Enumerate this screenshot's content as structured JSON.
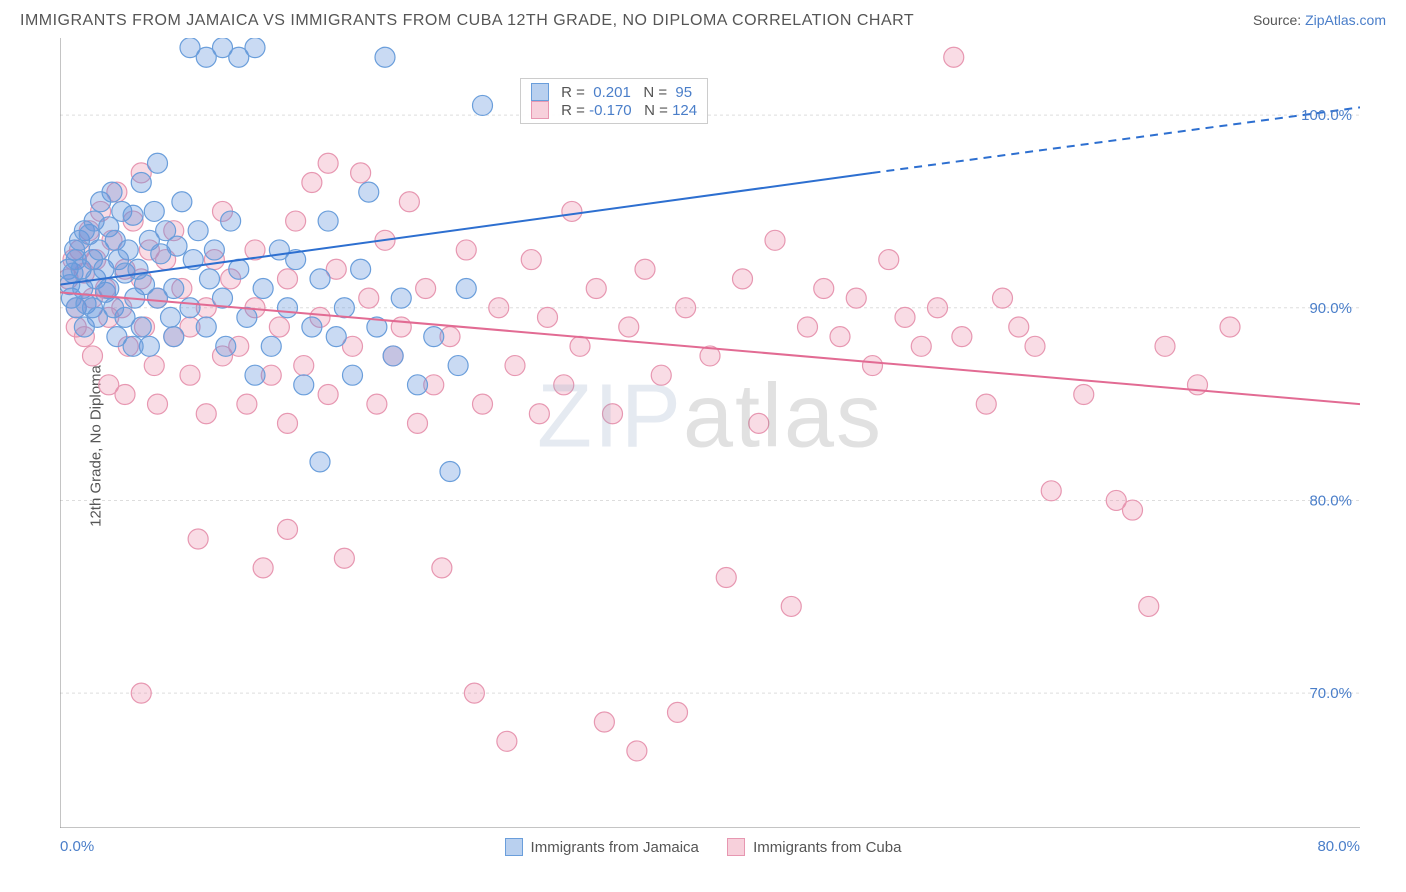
{
  "chart": {
    "type": "scatter",
    "title": "IMMIGRANTS FROM JAMAICA VS IMMIGRANTS FROM CUBA 12TH GRADE, NO DIPLOMA CORRELATION CHART",
    "source_label": "Source:",
    "source_link": "ZipAtlas.com",
    "ylabel": "12th Grade, No Diploma",
    "watermark": "ZIPatlas",
    "background_color": "#ffffff",
    "grid_color": "#dddddd",
    "axis_color": "#888888",
    "text_color": "#555555",
    "value_color": "#4a7ec9",
    "title_fontsize": 16,
    "label_fontsize": 15,
    "xlim": [
      0,
      80
    ],
    "ylim": [
      63,
      104
    ],
    "x_start_label": "0.0%",
    "x_end_label": "80.0%",
    "xtick_positions": [
      0,
      10,
      20,
      30,
      40,
      50,
      60,
      70,
      80
    ],
    "yticks": [
      {
        "value": 100,
        "label": "100.0%"
      },
      {
        "value": 90,
        "label": "90.0%"
      },
      {
        "value": 80,
        "label": "80.0%"
      },
      {
        "value": 70,
        "label": "70.0%"
      }
    ],
    "series": [
      {
        "name": "Immigrants from Jamaica",
        "color_fill": "rgba(100,150,220,0.35)",
        "color_stroke": "#6a9edb",
        "swatch_fill": "#b9d0ef",
        "swatch_border": "#6a9edb",
        "R": "0.201",
        "N": "95",
        "marker_radius": 10,
        "trend": {
          "color": "#2d6fd0",
          "width": 2,
          "solid": {
            "x1": 0,
            "y1": 91.2,
            "x2": 50,
            "y2": 97.0
          },
          "dashed": {
            "x1": 50,
            "y1": 97.0,
            "x2": 80,
            "y2": 100.4
          }
        },
        "points": [
          [
            0.5,
            92.0
          ],
          [
            0.6,
            91.2
          ],
          [
            0.8,
            91.8
          ],
          [
            0.9,
            93.0
          ],
          [
            0.7,
            90.5
          ],
          [
            1.0,
            92.5
          ],
          [
            1.2,
            93.5
          ],
          [
            1.0,
            90.0
          ],
          [
            1.3,
            92.0
          ],
          [
            1.5,
            94.0
          ],
          [
            1.4,
            91.0
          ],
          [
            1.6,
            90.2
          ],
          [
            1.8,
            93.8
          ],
          [
            1.5,
            89.0
          ],
          [
            2.0,
            92.5
          ],
          [
            2.1,
            94.5
          ],
          [
            2.2,
            91.5
          ],
          [
            2.0,
            90.0
          ],
          [
            2.4,
            93.0
          ],
          [
            2.5,
            95.5
          ],
          [
            2.3,
            89.5
          ],
          [
            2.7,
            92.0
          ],
          [
            2.8,
            90.8
          ],
          [
            3.0,
            94.2
          ],
          [
            3.0,
            91.0
          ],
          [
            3.2,
            96.0
          ],
          [
            3.4,
            93.5
          ],
          [
            3.3,
            90.0
          ],
          [
            3.5,
            88.5
          ],
          [
            3.6,
            92.5
          ],
          [
            3.8,
            95.0
          ],
          [
            4.0,
            91.8
          ],
          [
            4.0,
            89.5
          ],
          [
            4.2,
            93.0
          ],
          [
            4.5,
            94.8
          ],
          [
            4.6,
            90.5
          ],
          [
            4.8,
            92.0
          ],
          [
            5.0,
            96.5
          ],
          [
            5.0,
            89.0
          ],
          [
            5.2,
            91.2
          ],
          [
            5.5,
            93.5
          ],
          [
            5.8,
            95.0
          ],
          [
            5.5,
            88.0
          ],
          [
            6.0,
            90.5
          ],
          [
            6.2,
            92.8
          ],
          [
            6.5,
            94.0
          ],
          [
            6.0,
            97.5
          ],
          [
            6.8,
            89.5
          ],
          [
            7.0,
            91.0
          ],
          [
            7.2,
            93.2
          ],
          [
            7.5,
            95.5
          ],
          [
            7.0,
            88.5
          ],
          [
            8.0,
            90.0
          ],
          [
            8.2,
            92.5
          ],
          [
            8.5,
            94.0
          ],
          [
            8.0,
            103.5
          ],
          [
            9.0,
            89.0
          ],
          [
            9.2,
            91.5
          ],
          [
            9.5,
            93.0
          ],
          [
            9.0,
            103.0
          ],
          [
            10.0,
            90.5
          ],
          [
            10.2,
            88.0
          ],
          [
            10.5,
            94.5
          ],
          [
            10.0,
            103.5
          ],
          [
            11.0,
            92.0
          ],
          [
            11.5,
            89.5
          ],
          [
            11.0,
            103.0
          ],
          [
            12.0,
            86.5
          ],
          [
            12.5,
            91.0
          ],
          [
            12.0,
            103.5
          ],
          [
            13.0,
            88.0
          ],
          [
            13.5,
            93.0
          ],
          [
            14.0,
            90.0
          ],
          [
            14.5,
            92.5
          ],
          [
            15.0,
            86.0
          ],
          [
            15.5,
            89.0
          ],
          [
            16.0,
            91.5
          ],
          [
            16.5,
            94.5
          ],
          [
            17.0,
            88.5
          ],
          [
            17.5,
            90.0
          ],
          [
            18.0,
            86.5
          ],
          [
            18.5,
            92.0
          ],
          [
            19.0,
            96.0
          ],
          [
            19.5,
            89.0
          ],
          [
            20.0,
            103.0
          ],
          [
            20.5,
            87.5
          ],
          [
            21.0,
            90.5
          ],
          [
            22.0,
            86.0
          ],
          [
            23.0,
            88.5
          ],
          [
            24.0,
            81.5
          ],
          [
            25.0,
            91.0
          ],
          [
            26.0,
            100.5
          ],
          [
            24.5,
            87.0
          ],
          [
            16.0,
            82.0
          ],
          [
            4.5,
            88.0
          ]
        ]
      },
      {
        "name": "Immigrants from Cuba",
        "color_fill": "rgba(235,140,170,0.30)",
        "color_stroke": "#e797b1",
        "swatch_fill": "#f7d0db",
        "swatch_border": "#e797b1",
        "R": "-0.170",
        "N": "124",
        "marker_radius": 10,
        "trend": {
          "color": "#e26b93",
          "width": 2,
          "solid": {
            "x1": 0,
            "y1": 90.8,
            "x2": 80,
            "y2": 85.0
          },
          "dashed": null
        },
        "points": [
          [
            0.5,
            91.5
          ],
          [
            0.8,
            92.5
          ],
          [
            1.0,
            90.0
          ],
          [
            1.2,
            93.0
          ],
          [
            1.0,
            89.0
          ],
          [
            1.5,
            91.8
          ],
          [
            1.8,
            94.0
          ],
          [
            1.5,
            88.5
          ],
          [
            2.0,
            90.5
          ],
          [
            2.2,
            92.5
          ],
          [
            2.5,
            95.0
          ],
          [
            2.0,
            87.5
          ],
          [
            2.8,
            91.0
          ],
          [
            3.0,
            89.5
          ],
          [
            3.2,
            93.5
          ],
          [
            3.5,
            96.0
          ],
          [
            3.0,
            86.0
          ],
          [
            3.8,
            90.0
          ],
          [
            4.0,
            92.0
          ],
          [
            4.2,
            88.0
          ],
          [
            4.5,
            94.5
          ],
          [
            4.0,
            85.5
          ],
          [
            5.0,
            91.5
          ],
          [
            5.2,
            89.0
          ],
          [
            5.5,
            93.0
          ],
          [
            5.0,
            97.0
          ],
          [
            5.8,
            87.0
          ],
          [
            6.0,
            90.5
          ],
          [
            6.5,
            92.5
          ],
          [
            6.0,
            85.0
          ],
          [
            7.0,
            88.5
          ],
          [
            7.5,
            91.0
          ],
          [
            7.0,
            94.0
          ],
          [
            8.0,
            89.0
          ],
          [
            8.5,
            78.0
          ],
          [
            8.0,
            86.5
          ],
          [
            9.0,
            90.0
          ],
          [
            9.5,
            92.5
          ],
          [
            9.0,
            84.5
          ],
          [
            10.0,
            87.5
          ],
          [
            10.5,
            91.5
          ],
          [
            10.0,
            95.0
          ],
          [
            11.0,
            88.0
          ],
          [
            11.5,
            85.0
          ],
          [
            12.0,
            90.0
          ],
          [
            12.5,
            76.5
          ],
          [
            12.0,
            93.0
          ],
          [
            13.0,
            86.5
          ],
          [
            13.5,
            89.0
          ],
          [
            14.0,
            91.5
          ],
          [
            14.5,
            94.5
          ],
          [
            14.0,
            84.0
          ],
          [
            15.0,
            87.0
          ],
          [
            15.5,
            96.5
          ],
          [
            16.0,
            89.5
          ],
          [
            16.5,
            85.5
          ],
          [
            17.0,
            92.0
          ],
          [
            17.5,
            77.0
          ],
          [
            18.0,
            88.0
          ],
          [
            18.5,
            97.0
          ],
          [
            19.0,
            90.5
          ],
          [
            19.5,
            85.0
          ],
          [
            20.0,
            93.5
          ],
          [
            20.5,
            87.5
          ],
          [
            21.0,
            89.0
          ],
          [
            21.5,
            95.5
          ],
          [
            22.0,
            84.0
          ],
          [
            22.5,
            91.0
          ],
          [
            23.0,
            86.0
          ],
          [
            23.5,
            76.5
          ],
          [
            24.0,
            88.5
          ],
          [
            25.0,
            93.0
          ],
          [
            25.5,
            70.0
          ],
          [
            26.0,
            85.0
          ],
          [
            27.0,
            90.0
          ],
          [
            27.5,
            67.5
          ],
          [
            28.0,
            87.0
          ],
          [
            29.0,
            92.5
          ],
          [
            29.5,
            84.5
          ],
          [
            30.0,
            89.5
          ],
          [
            31.0,
            86.0
          ],
          [
            31.5,
            95.0
          ],
          [
            32.0,
            88.0
          ],
          [
            33.0,
            91.0
          ],
          [
            33.5,
            68.5
          ],
          [
            34.0,
            84.5
          ],
          [
            35.0,
            89.0
          ],
          [
            35.5,
            67.0
          ],
          [
            36.0,
            92.0
          ],
          [
            37.0,
            86.5
          ],
          [
            38.0,
            69.0
          ],
          [
            38.5,
            90.0
          ],
          [
            40.0,
            87.5
          ],
          [
            41.0,
            76.0
          ],
          [
            42.0,
            91.5
          ],
          [
            43.0,
            84.0
          ],
          [
            44.0,
            93.5
          ],
          [
            45.0,
            74.5
          ],
          [
            46.0,
            89.0
          ],
          [
            47.0,
            91.0
          ],
          [
            48.0,
            88.5
          ],
          [
            49.0,
            90.5
          ],
          [
            50.0,
            87.0
          ],
          [
            51.0,
            92.5
          ],
          [
            52.0,
            89.5
          ],
          [
            53.0,
            88.0
          ],
          [
            54.0,
            90.0
          ],
          [
            55.0,
            103.0
          ],
          [
            55.5,
            88.5
          ],
          [
            57.0,
            85.0
          ],
          [
            58.0,
            90.5
          ],
          [
            59.0,
            89.0
          ],
          [
            60.0,
            88.0
          ],
          [
            61.0,
            80.5
          ],
          [
            63.0,
            85.5
          ],
          [
            65.0,
            80.0
          ],
          [
            66.0,
            79.5
          ],
          [
            67.0,
            74.5
          ],
          [
            68.0,
            88.0
          ],
          [
            70.0,
            86.0
          ],
          [
            72.0,
            89.0
          ],
          [
            5.0,
            70.0
          ],
          [
            14.0,
            78.5
          ],
          [
            16.5,
            97.5
          ]
        ]
      }
    ],
    "bottom_legend": [
      {
        "label": "Immigrants from Jamaica",
        "fill": "#b9d0ef",
        "border": "#6a9edb"
      },
      {
        "label": "Immigrants from Cuba",
        "fill": "#f7d0db",
        "border": "#e797b1"
      }
    ]
  }
}
